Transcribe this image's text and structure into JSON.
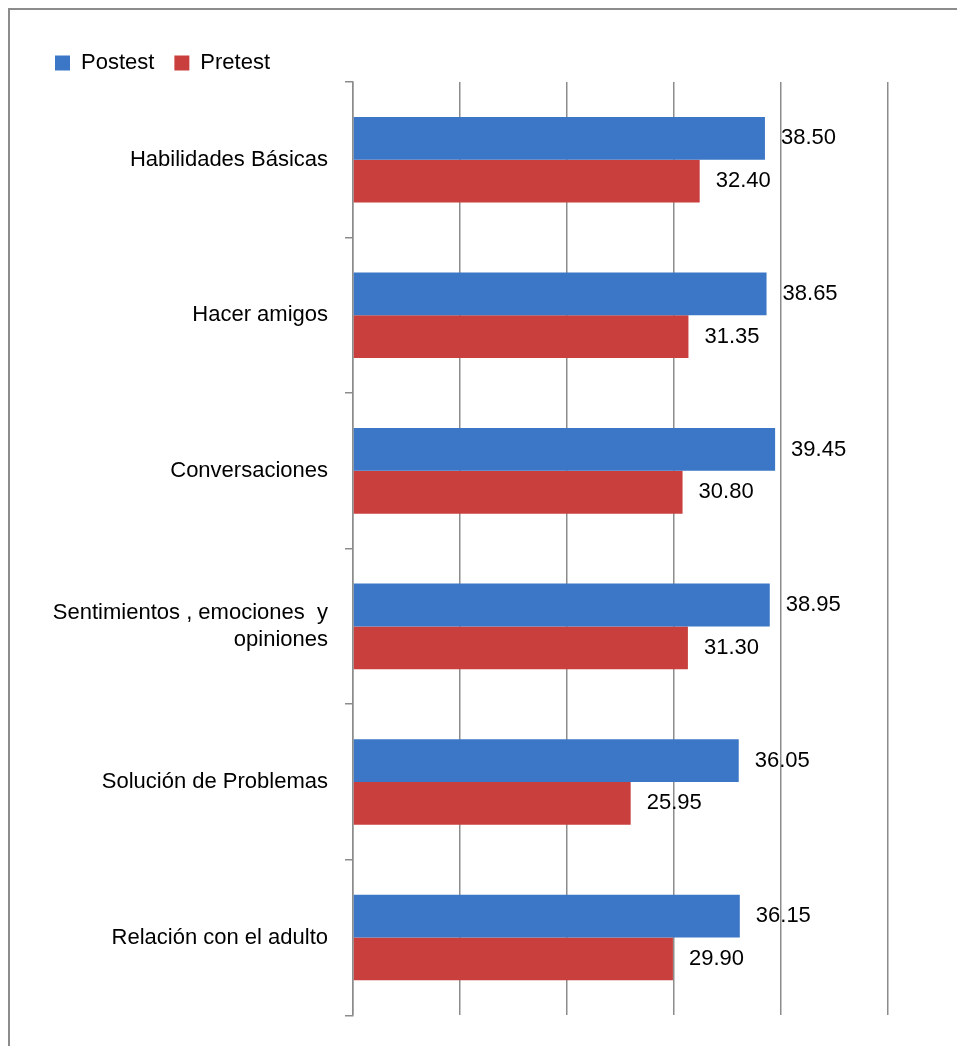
{
  "chart_data": {
    "type": "bar",
    "orientation": "horizontal",
    "categories": [
      "Habilidades Básicas",
      "Hacer amigos",
      "Conversaciones",
      "Sentimientos , emociones  y opiniones",
      "Solución de Problemas",
      "Relación con el adulto"
    ],
    "series": [
      {
        "name": "Postest",
        "color": "#3b77c6",
        "values": [
          38.5,
          38.65,
          39.45,
          38.95,
          36.05,
          36.15
        ],
        "value_labels": [
          "38.50",
          "38.65",
          "39.45",
          "38.95",
          "36.05",
          "36.15"
        ]
      },
      {
        "name": "Pretest",
        "color": "#c83f3d",
        "values": [
          32.4,
          31.35,
          30.8,
          31.3,
          25.95,
          29.9
        ],
        "value_labels": [
          "32.40",
          "31.35",
          "30.80",
          "31.30",
          "25.95",
          "29.90"
        ]
      }
    ],
    "xlim": [
      0,
      50
    ],
    "xticks": [
      {
        "value": 0,
        "label": null
      },
      {
        "value": 10,
        "label": null
      },
      {
        "value": 20,
        "label": null
      },
      {
        "value": 30,
        "label": null
      },
      {
        "value": 40,
        "label": null
      },
      {
        "value": 50,
        "label": null
      }
    ],
    "grid": "x",
    "legend": "top left",
    "tick_labels": "y"
  }
}
